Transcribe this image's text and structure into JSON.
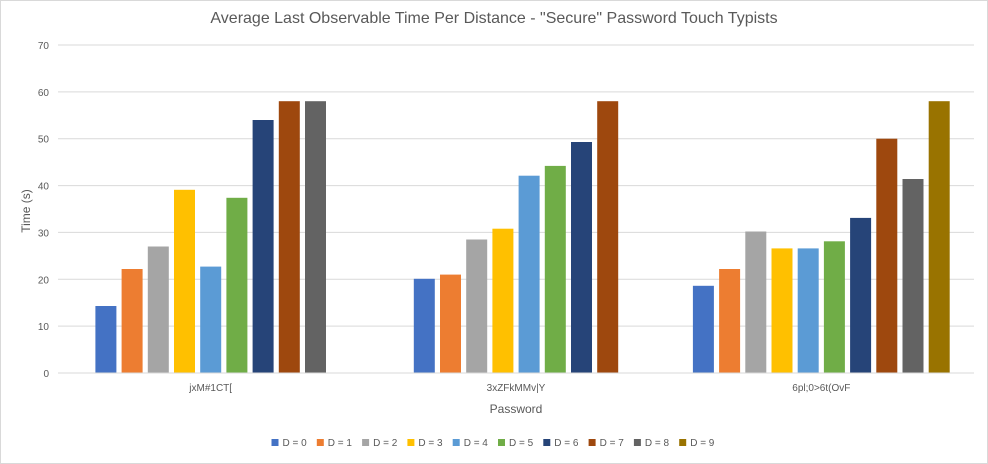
{
  "chart_data": {
    "type": "bar",
    "title": "Average Last Observable Time Per Distance - \"Secure\" Password Touch Typists",
    "xlabel": "Password",
    "ylabel": "Time (s)",
    "ylim": [
      0,
      70
    ],
    "yticks": [
      0,
      10,
      20,
      30,
      40,
      50,
      60,
      70
    ],
    "grid": true,
    "legend_position": "bottom",
    "categories": [
      "jxM#1CT[",
      "3xZFkMMv|Y",
      "6pl;0>6t(OvF"
    ],
    "series": [
      {
        "name": "D = 0",
        "color": "#4472c4",
        "values": [
          14.3,
          20.1,
          18.6
        ]
      },
      {
        "name": "D = 1",
        "color": "#ed7d31",
        "values": [
          22.2,
          21.0,
          22.2
        ]
      },
      {
        "name": "D = 2",
        "color": "#a5a5a5",
        "values": [
          27.0,
          28.5,
          30.2
        ]
      },
      {
        "name": "D = 3",
        "color": "#ffc000",
        "values": [
          39.1,
          30.8,
          26.6
        ]
      },
      {
        "name": "D = 4",
        "color": "#5b9bd5",
        "values": [
          22.7,
          42.1,
          26.6
        ]
      },
      {
        "name": "D = 5",
        "color": "#70ad47",
        "values": [
          37.4,
          44.2,
          28.1
        ]
      },
      {
        "name": "D = 6",
        "color": "#264478",
        "values": [
          54.0,
          49.3,
          33.1
        ]
      },
      {
        "name": "D = 7",
        "color": "#9e480e",
        "values": [
          58.0,
          58.0,
          50.0
        ]
      },
      {
        "name": "D = 8",
        "color": "#636363",
        "values": [
          58.0,
          null,
          41.4
        ]
      },
      {
        "name": "D = 9",
        "color": "#997300",
        "values": [
          null,
          null,
          58.0
        ]
      }
    ]
  }
}
